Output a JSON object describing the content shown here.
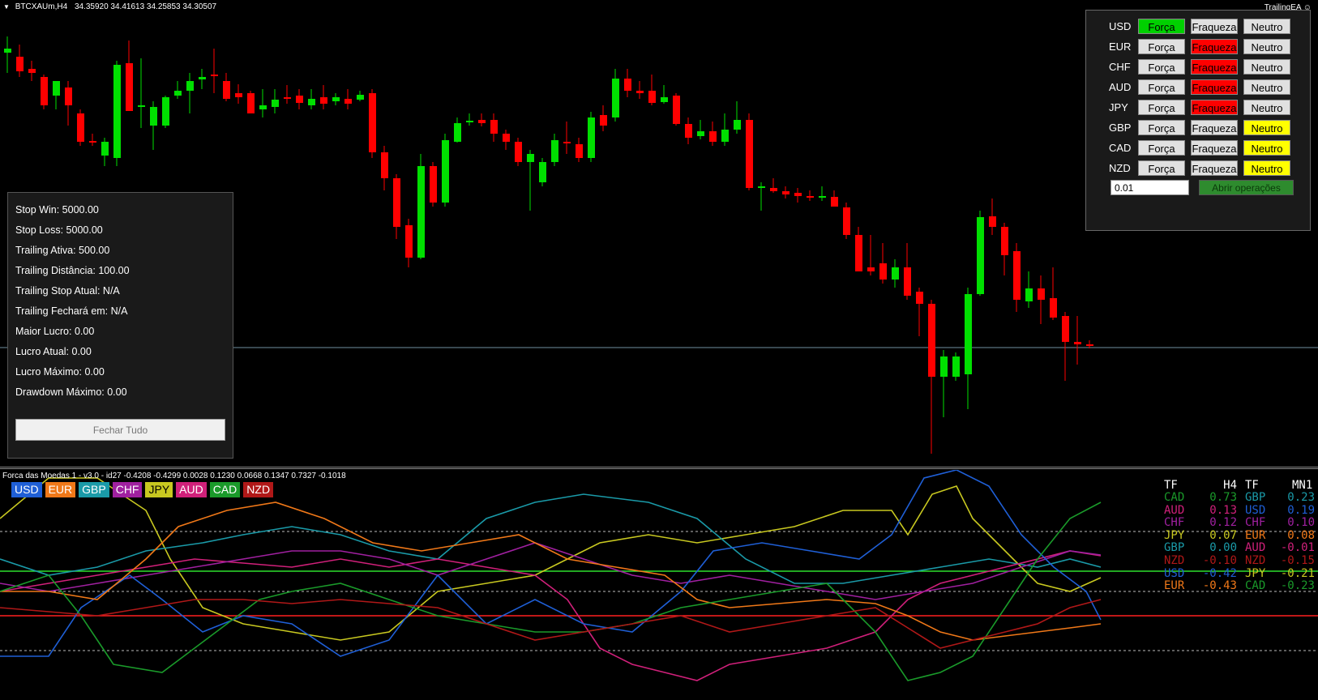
{
  "header": {
    "symbol": "BTCXAUm,H4",
    "ohlc": "34.35920 34.41613 34.25853 34.30507",
    "ea_label": "TrailingEA ☺"
  },
  "info_panel": {
    "rows": [
      "Stop Win: 5000.00",
      "Stop Loss: 5000.00",
      "Trailing Ativa: 500.00",
      "Trailing Distância: 100.00",
      "Trailing Stop Atual: N/A",
      "Trailing Fechará em: N/A",
      "Maior Lucro: 0.00",
      "Lucro Atual: 0.00",
      "Lucro Máximo: 0.00",
      "Drawdown Máximo: 0.00"
    ],
    "close_all_label": "Fechar Tudo"
  },
  "currency_panel": {
    "rows": [
      {
        "name": "USD",
        "forca": "Força",
        "fraqueza": "Fraqueza",
        "neutro": "Neutro",
        "active": "forca"
      },
      {
        "name": "EUR",
        "forca": "Força",
        "fraqueza": "Fraqueza",
        "neutro": "Neutro",
        "active": "fraqueza"
      },
      {
        "name": "CHF",
        "forca": "Força",
        "fraqueza": "Fraqueza",
        "neutro": "Neutro",
        "active": "fraqueza"
      },
      {
        "name": "AUD",
        "forca": "Força",
        "fraqueza": "Fraqueza",
        "neutro": "Neutro",
        "active": "fraqueza"
      },
      {
        "name": "JPY",
        "forca": "Força",
        "fraqueza": "Fraqueza",
        "neutro": "Neutro",
        "active": "fraqueza"
      },
      {
        "name": "GBP",
        "forca": "Força",
        "fraqueza": "Fraqueza",
        "neutro": "Neutro",
        "active": "neutro"
      },
      {
        "name": "CAD",
        "forca": "Força",
        "fraqueza": "Fraqueza",
        "neutro": "Neutro",
        "active": "neutro"
      },
      {
        "name": "NZD",
        "forca": "Força",
        "fraqueza": "Fraqueza",
        "neutro": "Neutro",
        "active": "neutro"
      }
    ],
    "lot_value": "0.01",
    "open_label": "Abrir operações"
  },
  "indicator": {
    "title": "Forca das Moedas 1 - v3.0 - id27 -0.4208 -0.4299 0.0028 0.1230 0.0668 0.1347 0.7327 -0.1018",
    "tags": [
      {
        "label": "USD",
        "color": "#1f5fd6"
      },
      {
        "label": "EUR",
        "color": "#f07818"
      },
      {
        "label": "GBP",
        "color": "#1a9aa8"
      },
      {
        "label": "CHF",
        "color": "#a020a0"
      },
      {
        "label": "JPY",
        "color": "#c8c820"
      },
      {
        "label": "AUD",
        "color": "#d0207a"
      },
      {
        "label": "CAD",
        "color": "#1a9a2a"
      },
      {
        "label": "NZD",
        "color": "#b01818"
      }
    ],
    "table_headers": {
      "tf1": "TF",
      "tf1_val": "H4",
      "tf2": "TF",
      "tf2_val": "MN1"
    },
    "h4": [
      {
        "ccy": "CAD",
        "val": "0.73",
        "color": "#1a9a2a"
      },
      {
        "ccy": "AUD",
        "val": "0.13",
        "color": "#d0207a"
      },
      {
        "ccy": "CHF",
        "val": "0.12",
        "color": "#a020a0"
      },
      {
        "ccy": "JPY",
        "val": "0.07",
        "color": "#c8c820"
      },
      {
        "ccy": "GBP",
        "val": "0.00",
        "color": "#1a9aa8"
      },
      {
        "ccy": "NZD",
        "val": "-0.10",
        "color": "#b01818"
      },
      {
        "ccy": "USD",
        "val": "-0.42",
        "color": "#1f5fd6"
      },
      {
        "ccy": "EUR",
        "val": "-0.43",
        "color": "#f07818"
      }
    ],
    "mn1": [
      {
        "ccy": "GBP",
        "val": "0.23",
        "color": "#1a9aa8"
      },
      {
        "ccy": "USD",
        "val": "0.19",
        "color": "#1f5fd6"
      },
      {
        "ccy": "CHF",
        "val": "0.10",
        "color": "#a020a0"
      },
      {
        "ccy": "EUR",
        "val": "0.08",
        "color": "#f07818"
      },
      {
        "ccy": "AUD",
        "val": "-0.01",
        "color": "#d0207a"
      },
      {
        "ccy": "NZD",
        "val": "-0.15",
        "color": "#b01818"
      },
      {
        "ccy": "JPY",
        "val": "-0.21",
        "color": "#c8c820"
      },
      {
        "ccy": "CAD",
        "val": "-0.23",
        "color": "#1a9a2a"
      }
    ]
  },
  "colors": {
    "bull": "#00e000",
    "bear": "#ff0000",
    "active_forca": "#00d000",
    "active_fraqueza": "#ff0000",
    "active_neutro": "#ffff00",
    "button": "#e0e0e0"
  }
}
